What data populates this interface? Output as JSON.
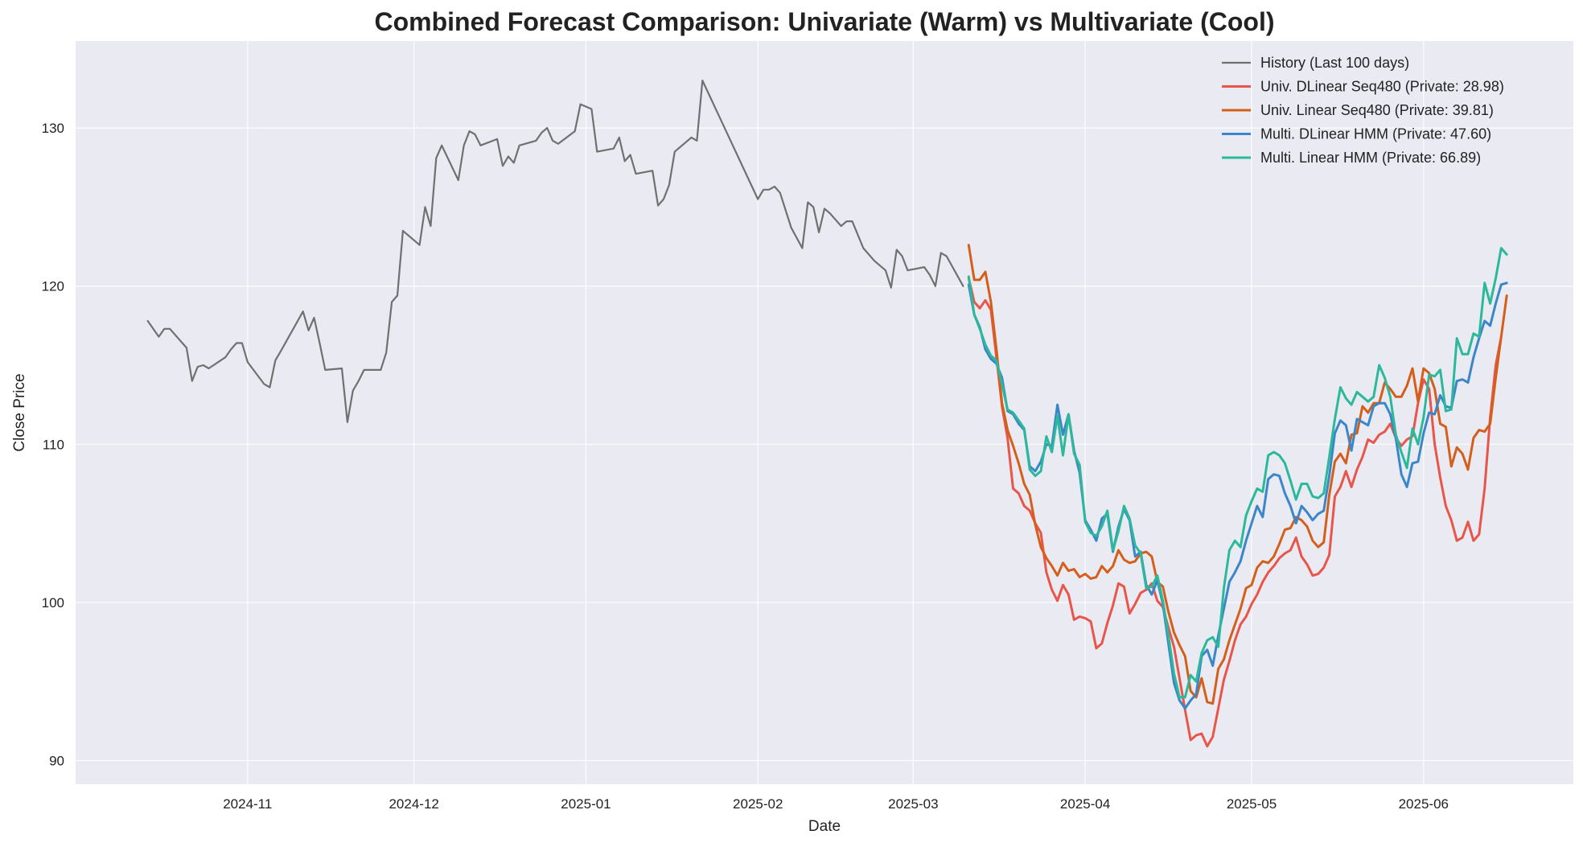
{
  "chart_data": {
    "type": "line",
    "title": "Combined Forecast Comparison: Univariate (Warm) vs Multivariate (Cool)",
    "xlabel": "Date",
    "ylabel": "Close Price",
    "x_range": [
      "2024-10-01",
      "2025-06-28"
    ],
    "ylim": [
      88.5,
      135.5
    ],
    "grid": true,
    "legend_position": "top-right",
    "x_ticks": [
      {
        "date": "2024-11-01",
        "label": "2024-11"
      },
      {
        "date": "2024-12-01",
        "label": "2024-12"
      },
      {
        "date": "2025-01-01",
        "label": "2025-01"
      },
      {
        "date": "2025-02-01",
        "label": "2025-02"
      },
      {
        "date": "2025-03-01",
        "label": "2025-03"
      },
      {
        "date": "2025-04-01",
        "label": "2025-04"
      },
      {
        "date": "2025-05-01",
        "label": "2025-05"
      },
      {
        "date": "2025-06-01",
        "label": "2025-06"
      }
    ],
    "y_ticks": [
      90,
      100,
      110,
      120,
      130
    ],
    "series": [
      {
        "name": "History (Last 100 days)",
        "color": "#707070",
        "width": 2.2,
        "points": [
          [
            "2024-10-14",
            117.8
          ],
          [
            "2024-10-16",
            116.8
          ],
          [
            "2024-10-17",
            117.3
          ],
          [
            "2024-10-18",
            117.3
          ],
          [
            "2024-10-21",
            116.1
          ],
          [
            "2024-10-22",
            114.0
          ],
          [
            "2024-10-23",
            114.9
          ],
          [
            "2024-10-24",
            115.0
          ],
          [
            "2024-10-25",
            114.8
          ],
          [
            "2024-10-28",
            115.5
          ],
          [
            "2024-10-29",
            116.0
          ],
          [
            "2024-10-30",
            116.4
          ],
          [
            "2024-10-31",
            116.4
          ],
          [
            "2024-11-01",
            115.2
          ],
          [
            "2024-11-04",
            113.8
          ],
          [
            "2024-11-05",
            113.6
          ],
          [
            "2024-11-06",
            115.3
          ],
          [
            "2024-11-07",
            115.9
          ],
          [
            "2024-11-11",
            118.4
          ],
          [
            "2024-11-12",
            117.2
          ],
          [
            "2024-11-13",
            118.0
          ],
          [
            "2024-11-14",
            116.4
          ],
          [
            "2024-11-15",
            114.7
          ],
          [
            "2024-11-18",
            114.8
          ],
          [
            "2024-11-19",
            111.4
          ],
          [
            "2024-11-20",
            113.4
          ],
          [
            "2024-11-21",
            114.0
          ],
          [
            "2024-11-22",
            114.7
          ],
          [
            "2024-11-25",
            114.7
          ],
          [
            "2024-11-26",
            115.8
          ],
          [
            "2024-11-27",
            119.0
          ],
          [
            "2024-11-28",
            119.4
          ],
          [
            "2024-11-29",
            123.5
          ],
          [
            "2024-12-02",
            122.6
          ],
          [
            "2024-12-03",
            125.0
          ],
          [
            "2024-12-04",
            123.8
          ],
          [
            "2024-12-05",
            128.1
          ],
          [
            "2024-12-06",
            128.9
          ],
          [
            "2024-12-09",
            126.7
          ],
          [
            "2024-12-10",
            128.9
          ],
          [
            "2024-12-11",
            129.8
          ],
          [
            "2024-12-12",
            129.6
          ],
          [
            "2024-12-13",
            128.9
          ],
          [
            "2024-12-16",
            129.3
          ],
          [
            "2024-12-17",
            127.6
          ],
          [
            "2024-12-18",
            128.2
          ],
          [
            "2024-12-19",
            127.8
          ],
          [
            "2024-12-20",
            128.9
          ],
          [
            "2024-12-23",
            129.2
          ],
          [
            "2024-12-24",
            129.7
          ],
          [
            "2024-12-25",
            130.0
          ],
          [
            "2024-12-26",
            129.2
          ],
          [
            "2024-12-27",
            129.0
          ],
          [
            "2024-12-30",
            129.8
          ],
          [
            "2024-12-31",
            131.5
          ],
          [
            "2025-01-02",
            131.2
          ],
          [
            "2025-01-03",
            128.5
          ],
          [
            "2025-01-06",
            128.7
          ],
          [
            "2025-01-07",
            129.4
          ],
          [
            "2025-01-08",
            127.9
          ],
          [
            "2025-01-09",
            128.3
          ],
          [
            "2025-01-10",
            127.1
          ],
          [
            "2025-01-13",
            127.3
          ],
          [
            "2025-01-14",
            125.1
          ],
          [
            "2025-01-15",
            125.5
          ],
          [
            "2025-01-16",
            126.4
          ],
          [
            "2025-01-17",
            128.5
          ],
          [
            "2025-01-20",
            129.4
          ],
          [
            "2025-01-21",
            129.2
          ],
          [
            "2025-01-22",
            133.0
          ],
          [
            "2025-02-01",
            125.5
          ],
          [
            "2025-02-02",
            126.1
          ],
          [
            "2025-02-03",
            126.1
          ],
          [
            "2025-02-04",
            126.3
          ],
          [
            "2025-02-05",
            125.9
          ],
          [
            "2025-02-07",
            123.7
          ],
          [
            "2025-02-09",
            122.4
          ],
          [
            "2025-02-10",
            125.3
          ],
          [
            "2025-02-11",
            125.0
          ],
          [
            "2025-02-12",
            123.4
          ],
          [
            "2025-02-13",
            124.9
          ],
          [
            "2025-02-14",
            124.6
          ],
          [
            "2025-02-16",
            123.8
          ],
          [
            "2025-02-17",
            124.1
          ],
          [
            "2025-02-18",
            124.1
          ],
          [
            "2025-02-20",
            122.4
          ],
          [
            "2025-02-22",
            121.6
          ],
          [
            "2025-02-24",
            121.0
          ],
          [
            "2025-02-25",
            119.9
          ],
          [
            "2025-02-26",
            122.3
          ],
          [
            "2025-02-27",
            121.9
          ],
          [
            "2025-02-28",
            121.0
          ],
          [
            "2025-03-03",
            121.2
          ],
          [
            "2025-03-04",
            120.7
          ],
          [
            "2025-03-05",
            120.0
          ],
          [
            "2025-03-06",
            122.1
          ],
          [
            "2025-03-07",
            121.9
          ],
          [
            "2025-03-10",
            120.0
          ]
        ]
      },
      {
        "name": "Univ. DLinear Seq480 (Private: 28.98)",
        "color": "#e8554a",
        "width": 3.0,
        "start": "2025-03-11",
        "values": [
          120.5,
          119.0,
          118.6,
          119.1,
          118.5,
          115.5,
          112.4,
          110.4,
          107.2,
          106.9,
          106.1,
          105.8,
          105.0,
          104.4,
          101.9,
          100.8,
          100.1,
          101.1,
          100.5,
          98.9,
          99.1,
          99.0,
          98.8,
          97.1,
          97.4,
          98.7,
          99.8,
          101.2,
          101.0,
          99.3,
          99.9,
          100.6,
          100.8,
          101.2,
          100.1,
          99.7,
          98.4,
          97.2,
          95.2,
          93.2,
          91.3,
          91.6,
          91.7,
          90.9,
          91.5,
          93.3,
          95.1,
          96.3,
          97.6,
          98.6,
          99.1,
          99.9,
          100.5,
          101.3,
          101.9,
          102.3,
          102.8,
          103.1,
          103.3,
          104.1,
          102.9,
          102.4,
          101.7,
          101.8,
          102.2,
          103.0,
          106.7,
          107.3,
          108.3,
          107.3,
          108.4,
          109.2,
          110.3,
          110.1,
          110.6,
          110.8,
          111.3,
          110.4,
          109.9,
          110.3,
          110.5,
          112.6,
          114.1,
          113.5,
          110.0,
          107.9,
          106.1,
          105.2,
          103.9,
          104.1,
          105.1,
          103.9,
          104.3,
          107.2,
          111.7,
          115.0,
          116.8
        ]
      },
      {
        "name": "Univ. Linear Seq480 (Private: 39.81)",
        "color": "#d35f1b",
        "width": 3.0,
        "start": "2025-03-11",
        "values": [
          122.6,
          120.4,
          120.4,
          120.9,
          119.0,
          116.0,
          112.6,
          110.9,
          109.9,
          108.8,
          107.5,
          106.8,
          104.9,
          103.5,
          102.8,
          102.3,
          101.7,
          102.5,
          102.0,
          102.1,
          101.6,
          101.8,
          101.5,
          101.6,
          102.3,
          101.9,
          102.3,
          103.3,
          102.7,
          102.5,
          102.6,
          103.1,
          103.2,
          102.9,
          101.3,
          101.0,
          99.4,
          98.1,
          97.3,
          96.6,
          94.4,
          94.0,
          95.2,
          93.7,
          93.6,
          95.8,
          96.4,
          97.6,
          98.6,
          99.6,
          100.9,
          101.1,
          102.2,
          102.6,
          102.5,
          102.9,
          103.7,
          104.6,
          104.7,
          105.4,
          105.2,
          104.8,
          103.9,
          103.5,
          103.8,
          106.8,
          108.9,
          109.4,
          108.8,
          110.6,
          110.7,
          112.4,
          112.0,
          112.6,
          112.6,
          113.9,
          113.5,
          113.0,
          113.0,
          113.7,
          114.8,
          112.7,
          114.8,
          114.5,
          113.5,
          111.3,
          111.1,
          108.6,
          109.8,
          109.4,
          108.4,
          110.4,
          110.9,
          110.8,
          111.3,
          114.2,
          116.8,
          119.4
        ]
      },
      {
        "name": "Multi. DLinear HMM (Private: 47.60)",
        "color": "#3a86c8",
        "width": 3.0,
        "start": "2025-03-11",
        "values": [
          120.1,
          118.2,
          117.4,
          116.0,
          115.4,
          115.1,
          114.2,
          112.1,
          111.9,
          111.3,
          110.9,
          108.6,
          108.3,
          108.9,
          110.0,
          109.9,
          112.5,
          110.6,
          111.9,
          109.6,
          108.2,
          105.2,
          104.6,
          103.9,
          105.3,
          105.6,
          103.2,
          104.8,
          105.9,
          105.2,
          102.9,
          103.2,
          101.1,
          100.5,
          101.4,
          99.9,
          97.4,
          94.9,
          93.8,
          93.3,
          93.8,
          94.2,
          96.6,
          97.0,
          96.0,
          97.9,
          99.6,
          101.3,
          101.9,
          102.6,
          103.9,
          105.0,
          106.1,
          105.4,
          107.8,
          108.1,
          108.0,
          106.9,
          106.1,
          105.0,
          106.1,
          105.7,
          105.2,
          105.6,
          105.8,
          108.0,
          110.7,
          111.5,
          111.2,
          109.6,
          111.6,
          111.4,
          111.2,
          112.4,
          112.6,
          112.6,
          111.9,
          110.4,
          108.1,
          107.3,
          108.8,
          108.9,
          110.7,
          112.0,
          111.9,
          113.1,
          112.4,
          112.3,
          114.0,
          114.1,
          113.9,
          115.5,
          116.7,
          117.8,
          117.5,
          118.9,
          120.1,
          120.2
        ]
      },
      {
        "name": "Multi. Linear HMM (Private: 66.89)",
        "color": "#2cb89a",
        "width": 3.0,
        "start": "2025-03-11",
        "values": [
          120.6,
          118.2,
          117.3,
          116.3,
          115.6,
          115.3,
          113.8,
          112.2,
          112.0,
          111.5,
          111.0,
          108.4,
          108.0,
          108.3,
          110.5,
          109.5,
          111.8,
          109.3,
          111.9,
          109.4,
          108.7,
          105.1,
          104.4,
          104.2,
          104.8,
          105.8,
          103.3,
          104.5,
          106.1,
          105.3,
          103.6,
          103.1,
          100.9,
          101.0,
          101.7,
          100.1,
          97.9,
          95.5,
          94.0,
          94.0,
          95.4,
          95.0,
          96.8,
          97.6,
          97.8,
          97.2,
          100.9,
          103.3,
          103.9,
          103.5,
          105.5,
          106.4,
          107.2,
          107.0,
          109.3,
          109.5,
          109.3,
          108.8,
          107.7,
          106.5,
          107.5,
          107.5,
          106.7,
          106.6,
          106.9,
          109.2,
          111.6,
          113.6,
          112.9,
          112.5,
          113.3,
          113.0,
          112.7,
          113.0,
          115.0,
          114.2,
          113.0,
          110.6,
          109.5,
          108.5,
          111.0,
          110.0,
          111.7,
          114.4,
          114.3,
          114.7,
          112.1,
          112.2,
          116.7,
          115.7,
          115.7,
          117.0,
          116.8,
          120.2,
          118.9,
          120.5,
          122.4,
          122.0
        ]
      }
    ]
  }
}
